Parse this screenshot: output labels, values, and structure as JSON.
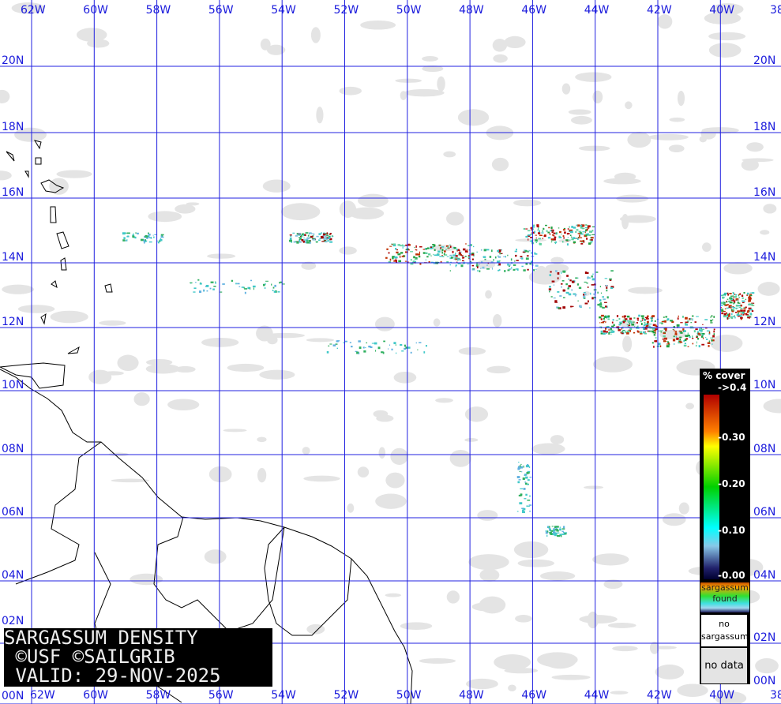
{
  "map": {
    "lon_labels": [
      "62W",
      "60W",
      "58W",
      "56W",
      "54W",
      "52W",
      "50W",
      "48W",
      "46W",
      "44W",
      "42W",
      "40W",
      "38"
    ],
    "lat_labels": [
      "20N",
      "18N",
      "16N",
      "14N",
      "12N",
      "10N",
      "08N",
      "06N",
      "04N",
      "02N",
      "00N"
    ],
    "lon_range": [
      -62.5,
      -37.5
    ],
    "lat_range": [
      0,
      21.5
    ],
    "colors": {
      "grid": "#2020e0",
      "coast": "#000000",
      "clouds": "#e4e4e4",
      "label": "#1a1adc"
    },
    "sargassum_areas": [
      {
        "lon": -49.3,
        "lat": 14.3,
        "spread": [
          1.4,
          0.3
        ],
        "density": "high"
      },
      {
        "lon": -47.3,
        "lat": 14.1,
        "spread": [
          1.4,
          0.35
        ],
        "density": "medium"
      },
      {
        "lon": -45.2,
        "lat": 14.9,
        "spread": [
          1.1,
          0.3
        ],
        "density": "high"
      },
      {
        "lon": -44.5,
        "lat": 13.2,
        "spread": [
          1.0,
          0.6
        ],
        "density": "medium"
      },
      {
        "lon": -43.0,
        "lat": 12.1,
        "spread": [
          0.9,
          0.3
        ],
        "density": "high"
      },
      {
        "lon": -41.2,
        "lat": 11.9,
        "spread": [
          1.0,
          0.5
        ],
        "density": "high"
      },
      {
        "lon": -39.5,
        "lat": 12.7,
        "spread": [
          0.5,
          0.4
        ],
        "density": "high"
      },
      {
        "lon": -53.1,
        "lat": 14.8,
        "spread": [
          0.7,
          0.15
        ],
        "density": "medium"
      },
      {
        "lon": -55.5,
        "lat": 13.3,
        "spread": [
          1.5,
          0.2
        ],
        "density": "low"
      },
      {
        "lon": -58.5,
        "lat": 14.8,
        "spread": [
          0.7,
          0.15
        ],
        "density": "low"
      },
      {
        "lon": -51.0,
        "lat": 11.4,
        "spread": [
          1.6,
          0.2
        ],
        "density": "low"
      },
      {
        "lon": -46.3,
        "lat": 7.0,
        "spread": [
          0.2,
          0.8
        ],
        "density": "low"
      },
      {
        "lon": -45.3,
        "lat": 5.6,
        "spread": [
          0.3,
          0.15
        ],
        "density": "low"
      }
    ]
  },
  "title": {
    "line1": "SARGASSUM DENSITY",
    "line2": " ©USF ©SAILGRIB",
    "line3": " VALID: 29-NOV-2025"
  },
  "legend": {
    "header": "% cover",
    "ticks": [
      "->0.4",
      "-0.30",
      "-0.20",
      "-0.10",
      "-0.00"
    ],
    "found_label": "sargassum found",
    "no_sargassum_label": "no sargassum",
    "no_data_label": "no data"
  }
}
